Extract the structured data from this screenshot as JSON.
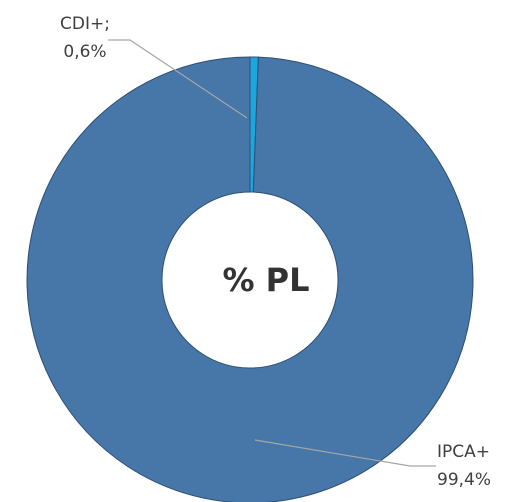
{
  "chart_data": {
    "type": "donut",
    "center_label": "% PL",
    "categories": [
      "CDI+;",
      "IPCA+"
    ],
    "values": [
      0.6,
      99.4
    ],
    "value_labels": [
      "0,6%",
      "99,4%"
    ],
    "colors": [
      "#1aa7e0",
      "#4677a8"
    ]
  }
}
